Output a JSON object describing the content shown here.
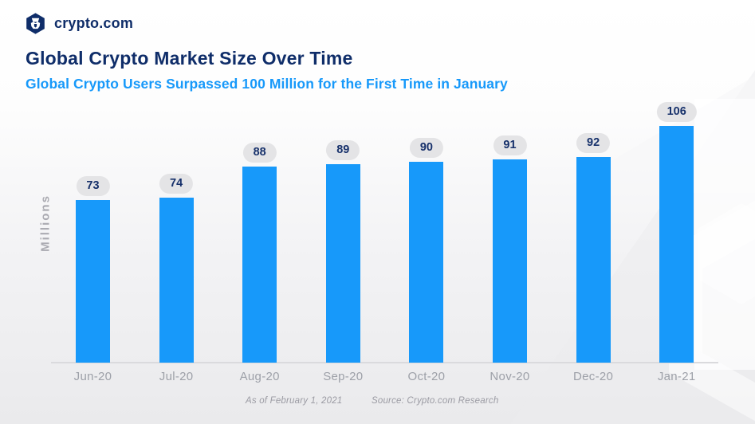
{
  "header": {
    "logo_text": "crypto.com",
    "title": "Global Crypto Market Size Over Time",
    "subtitle": "Global Crypto Users Surpassed 100 Million for the First Time in January"
  },
  "chart_data": {
    "type": "bar",
    "title": "Global Crypto Market Size Over Time",
    "subtitle": "Global Crypto Users Surpassed 100 Million for the First Time in January",
    "categories": [
      "Jun-20",
      "Jul-20",
      "Aug-20",
      "Sep-20",
      "Oct-20",
      "Nov-20",
      "Dec-20",
      "Jan-21"
    ],
    "values": [
      73,
      74,
      88,
      89,
      90,
      91,
      92,
      106
    ],
    "xlabel": "",
    "ylabel": "Millions",
    "ylim": [
      0,
      110
    ],
    "grid": false,
    "legend": "none",
    "data_labels": true,
    "annotations": [
      "As of February 1, 2021",
      "Source: Crypto.com Research"
    ]
  },
  "footer": {
    "as_of": "As of February 1, 2021",
    "source": "Source: Crypto.com Research"
  },
  "colors": {
    "navy": "#0f2d69",
    "blue": "#1799fa",
    "pill_bg": "#e4e4e6",
    "pill_text": "#17316b",
    "axis_gray": "#dadadd",
    "tick_gray": "#9da0a8"
  }
}
